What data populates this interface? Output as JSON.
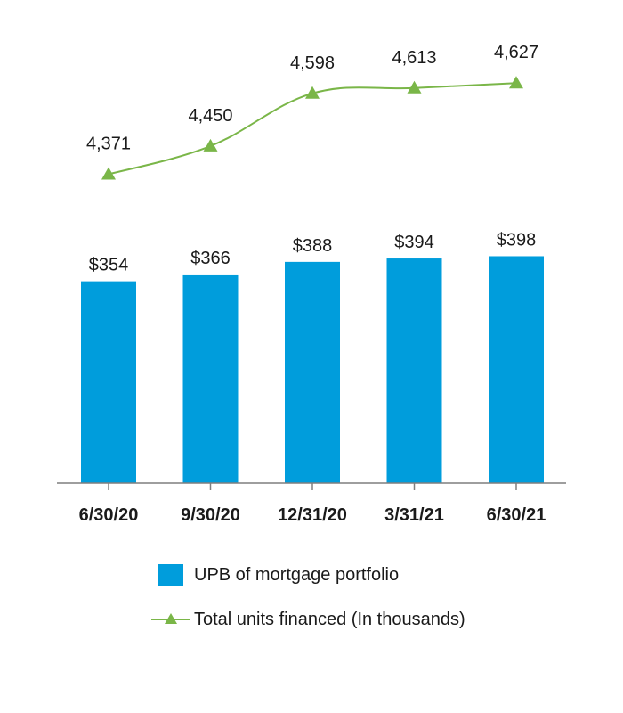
{
  "chart_data": {
    "type": "bar",
    "categories": [
      "6/30/20",
      "9/30/20",
      "12/31/20",
      "3/31/21",
      "6/30/21"
    ],
    "series": [
      {
        "name": "UPB of mortgage portfolio",
        "type": "bar",
        "values": [
          354,
          366,
          388,
          394,
          398
        ],
        "labels": [
          "$354",
          "$366",
          "$388",
          "$394",
          "$398"
        ],
        "color": "#009ddc"
      },
      {
        "name": "Total units financed (In thousands)",
        "type": "line",
        "marker": "triangle",
        "values": [
          4371,
          4450,
          4598,
          4613,
          4627
        ],
        "labels": [
          "4,371",
          "4,450",
          "4,598",
          "4,613",
          "4,627"
        ],
        "color": "#7ab648"
      }
    ],
    "legend_position": "bottom",
    "grid": false
  },
  "legend": {
    "bar_label": "UPB of mortgage portfolio",
    "line_label": "Total units financed (In thousands)"
  }
}
